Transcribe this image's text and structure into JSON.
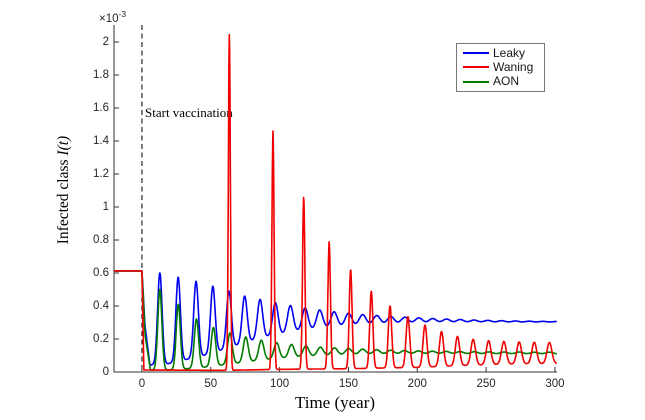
{
  "labels": {
    "ylabel_main": "Infected class ",
    "ylabel_math": "I(t)",
    "xlabel": "Time (year)",
    "scale_prefix": "×10",
    "scale_exponent": "-3",
    "annotation": "Start vaccination"
  },
  "legend": {
    "entries": [
      {
        "label": "Leaky",
        "color": "#0000ee"
      },
      {
        "label": "Waning",
        "color": "#f00000"
      },
      {
        "label": "AON",
        "color": "#007b00"
      }
    ]
  },
  "chart_data": {
    "type": "line",
    "title": "",
    "xlabel": "Time (year)",
    "ylabel": "Infected class I(t)",
    "y_unit_scale": "1e-3",
    "xlim": [
      -20.3,
      301.5
    ],
    "ylim": [
      0,
      2.103
    ],
    "xticks": [
      0,
      50,
      100,
      150,
      200,
      250,
      300
    ],
    "xtick_labels": [
      "0",
      "50",
      "100",
      "150",
      "200",
      "250",
      "300"
    ],
    "yticks": [
      0,
      0.2,
      0.4,
      0.6,
      0.8,
      1,
      1.2,
      1.4,
      1.6,
      1.8,
      2
    ],
    "ytick_labels": [
      "0",
      "0.2",
      "0.4",
      "0.6",
      "0.8",
      "1",
      "1.2",
      "1.4",
      "1.6",
      "1.8",
      "2"
    ],
    "grid": false,
    "legend_position": "top-right",
    "vline": {
      "x": 0,
      "style": "dashed",
      "color": "#000000",
      "label": "Start vaccination"
    },
    "pre_vaccination_value": 0.613,
    "series_model": "value(t) = interp(baseline,t) + sum over pulses [t0,peak,sigma] of (peak - interp(baseline,t0)) * exp(-((t-t0)/sigma)^2); units of 1e-3",
    "series": [
      {
        "name": "Leaky",
        "color": "#0000ee",
        "baseline": [
          [
            -20.3,
            0.613
          ],
          [
            0,
            0.613
          ],
          [
            2.2,
            0.28
          ],
          [
            5.8,
            0.042
          ],
          [
            19,
            0.05
          ],
          [
            32,
            0.075
          ],
          [
            45,
            0.1
          ],
          [
            57,
            0.13
          ],
          [
            69,
            0.162
          ],
          [
            80,
            0.19
          ],
          [
            91,
            0.213
          ],
          [
            102,
            0.232
          ],
          [
            113,
            0.248
          ],
          [
            124,
            0.26
          ],
          [
            135,
            0.27
          ],
          [
            146,
            0.277
          ],
          [
            157,
            0.283
          ],
          [
            168,
            0.288
          ],
          [
            179,
            0.291
          ],
          [
            190,
            0.294
          ],
          [
            201,
            0.296
          ],
          [
            215,
            0.298
          ],
          [
            230,
            0.299
          ],
          [
            250,
            0.3
          ],
          [
            301.5,
            0.302
          ]
        ],
        "pulses": [
          [
            13,
            0.6,
            2.3
          ],
          [
            26.3,
            0.575,
            2.3
          ],
          [
            39.3,
            0.55,
            2.4
          ],
          [
            51.5,
            0.52,
            2.4
          ],
          [
            63.2,
            0.49,
            2.5
          ],
          [
            74.6,
            0.46,
            2.6
          ],
          [
            85.8,
            0.44,
            2.7
          ],
          [
            96.9,
            0.42,
            2.8
          ],
          [
            107.8,
            0.403,
            2.9
          ],
          [
            118.5,
            0.388,
            3.0
          ],
          [
            129.1,
            0.376,
            3.1
          ],
          [
            139.6,
            0.365,
            3.2
          ],
          [
            150,
            0.356,
            3.3
          ],
          [
            160.3,
            0.348,
            3.4
          ],
          [
            170.6,
            0.342,
            3.5
          ],
          [
            180.8,
            0.336,
            3.5
          ],
          [
            191,
            0.332,
            3.6
          ],
          [
            201.1,
            0.328,
            3.6
          ],
          [
            211.2,
            0.324,
            3.7
          ],
          [
            221.2,
            0.321,
            3.7
          ],
          [
            231.2,
            0.318,
            3.7
          ],
          [
            241.2,
            0.315,
            3.8
          ],
          [
            251.2,
            0.313,
            3.8
          ],
          [
            261.2,
            0.311,
            3.8
          ],
          [
            271.2,
            0.309,
            3.8
          ],
          [
            281.2,
            0.308,
            3.8
          ],
          [
            291.2,
            0.307,
            3.8
          ],
          [
            301,
            0.306,
            3.8
          ]
        ]
      },
      {
        "name": "AON",
        "color": "#007b00",
        "baseline": [
          [
            -20.3,
            0.613
          ],
          [
            0,
            0.613
          ],
          [
            2.3,
            0.22
          ],
          [
            6.2,
            0.012
          ],
          [
            20,
            0.013
          ],
          [
            33,
            0.02
          ],
          [
            46,
            0.03
          ],
          [
            58,
            0.042
          ],
          [
            70,
            0.055
          ],
          [
            81,
            0.066
          ],
          [
            92,
            0.076
          ],
          [
            103,
            0.084
          ],
          [
            113,
            0.091
          ],
          [
            123,
            0.096
          ],
          [
            133,
            0.1
          ],
          [
            143,
            0.103
          ],
          [
            153,
            0.105
          ],
          [
            163,
            0.107
          ],
          [
            175,
            0.108
          ],
          [
            190,
            0.109
          ],
          [
            210,
            0.11
          ],
          [
            301.5,
            0.11
          ]
        ],
        "pulses": [
          [
            13,
            0.5,
            2.1
          ],
          [
            26.4,
            0.41,
            2.1
          ],
          [
            39.6,
            0.322,
            2.2
          ],
          [
            51.9,
            0.27,
            2.3
          ],
          [
            63.9,
            0.236,
            2.4
          ],
          [
            75.4,
            0.212,
            2.5
          ],
          [
            86.7,
            0.193,
            2.6
          ],
          [
            97.8,
            0.178,
            2.7
          ],
          [
            108.6,
            0.167,
            2.8
          ],
          [
            119.1,
            0.158,
            2.9
          ],
          [
            129.6,
            0.151,
            3.0
          ],
          [
            139.9,
            0.146,
            3.1
          ],
          [
            150.1,
            0.142,
            3.2
          ],
          [
            160.3,
            0.138,
            3.3
          ],
          [
            170.5,
            0.135,
            3.4
          ],
          [
            180.6,
            0.132,
            3.4
          ],
          [
            190.7,
            0.13,
            3.5
          ],
          [
            200.8,
            0.128,
            3.5
          ],
          [
            211,
            0.126,
            3.5
          ],
          [
            221,
            0.125,
            3.5
          ],
          [
            231,
            0.124,
            3.5
          ],
          [
            241.5,
            0.123,
            3.5
          ],
          [
            252,
            0.122,
            3.5
          ],
          [
            263,
            0.121,
            3.5
          ],
          [
            274,
            0.121,
            3.5
          ],
          [
            285,
            0.12,
            3.5
          ],
          [
            296,
            0.12,
            3.5
          ]
        ]
      },
      {
        "name": "Waning",
        "color": "#f00000",
        "baseline": [
          [
            -20.3,
            0.613
          ],
          [
            0,
            0.613
          ],
          [
            1.4,
            0.012
          ],
          [
            60,
            0.01
          ],
          [
            100,
            0.016
          ],
          [
            150,
            0.02
          ],
          [
            200,
            0.028
          ],
          [
            235,
            0.04
          ],
          [
            265,
            0.048
          ],
          [
            301.5,
            0.052
          ]
        ],
        "pulses": [
          [
            63.5,
            2.05,
            1.0
          ],
          [
            95.2,
            1.46,
            1.1
          ],
          [
            117.5,
            1.06,
            1.2
          ],
          [
            136,
            0.79,
            1.3
          ],
          [
            151.6,
            0.62,
            1.45
          ],
          [
            166.6,
            0.49,
            1.6
          ],
          [
            180.2,
            0.4,
            1.75
          ],
          [
            193.2,
            0.335,
            1.9
          ],
          [
            205.6,
            0.285,
            2.0
          ],
          [
            217.6,
            0.245,
            2.1
          ],
          [
            229.2,
            0.215,
            2.2
          ],
          [
            240.6,
            0.198,
            2.3
          ],
          [
            251.8,
            0.19,
            2.35
          ],
          [
            262.9,
            0.185,
            2.4
          ],
          [
            274,
            0.182,
            2.4
          ],
          [
            285,
            0.18,
            2.45
          ],
          [
            296,
            0.179,
            2.45
          ]
        ]
      }
    ],
    "draw_order": [
      "Leaky",
      "AON",
      "Waning"
    ]
  },
  "layout_note": ""
}
